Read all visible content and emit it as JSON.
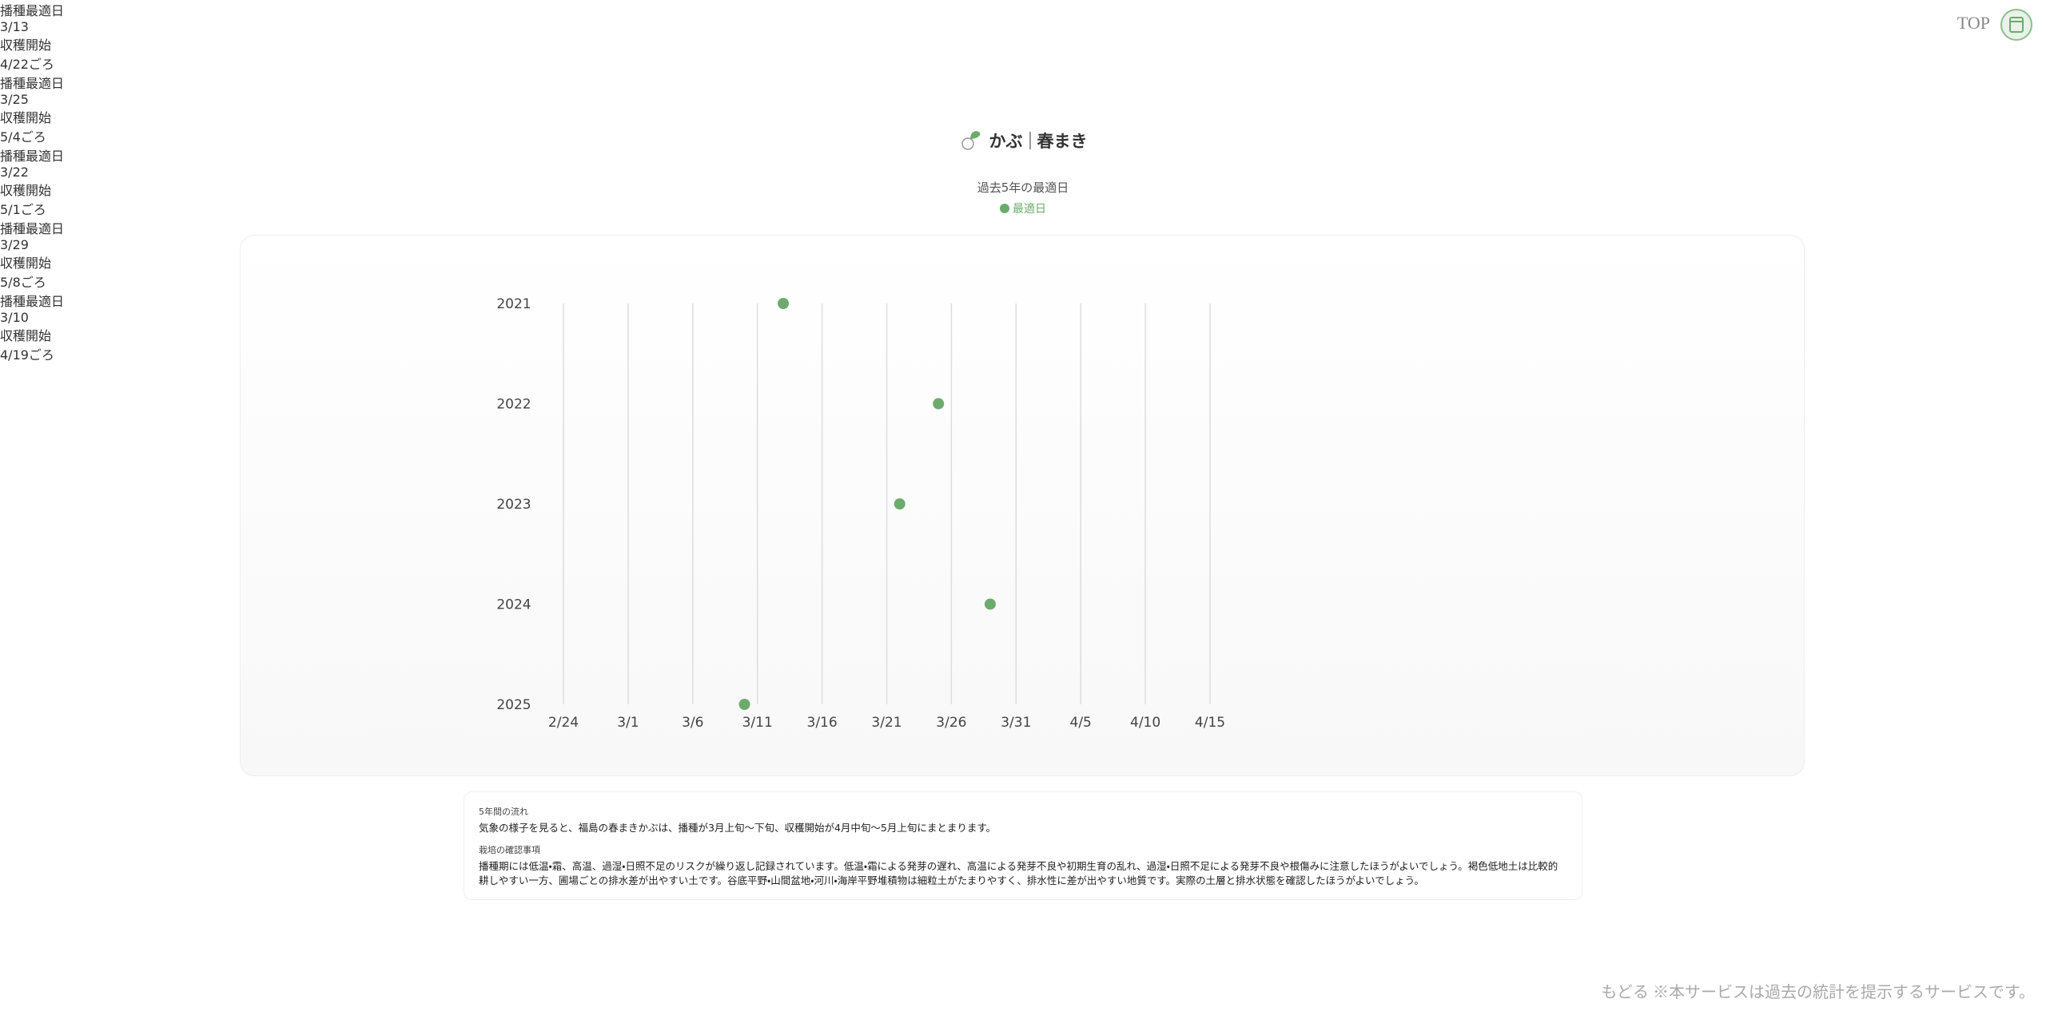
{
  "top_link": "TOP",
  "header": {
    "crop": "かぶ",
    "season": "春まき"
  },
  "chart_data": {
    "type": "dot",
    "title": "過去5年の最適日",
    "categories": [
      "2021",
      "2022",
      "2023",
      "2024",
      "2025"
    ],
    "series": [
      {
        "name": "最適日",
        "color": "#6dab6d",
        "values": [
          "3/13",
          "3/25",
          "3/22",
          "3/29",
          "3/10"
        ]
      }
    ],
    "xlim": [
      "2/24",
      "4/15"
    ],
    "xticks": [
      "2/24",
      "3/1",
      "3/6",
      "3/11",
      "3/16",
      "3/21",
      "3/26",
      "3/31",
      "4/5",
      "4/10",
      "4/15"
    ],
    "grid": true
  },
  "cards": [
    {
      "sow_label": "播種最適日",
      "harvest_label": "収穫開始",
      "harvest": "4/22ごろ"
    },
    {
      "sow_label": "播種最適日",
      "harvest_label": "収穫開始",
      "harvest": "5/4ごろ"
    },
    {
      "sow_label": "播種最適日",
      "harvest_label": "収穫開始",
      "harvest": "5/1ごろ"
    },
    {
      "sow_label": "播種最適日",
      "harvest_label": "収穫開始",
      "harvest": "5/8ごろ"
    },
    {
      "sow_label": "播種最適日",
      "harvest_label": "収穫開始",
      "harvest": "4/19ごろ"
    }
  ],
  "notes": [
    {
      "heading": "5年間の流れ",
      "body": "気象の様子を見ると、福島の春まきかぶは、播種が3月上旬〜下旬、収穫開始が4月中旬〜5月上旬にまとまります。"
    },
    {
      "heading": "栽培の確認事項",
      "body": "播種期には低温・霜、高温、過湿・日照不足のリスクが繰り返し記録されています。低温・霜による発芽の遅れ、高温による発芽不良や初期生育の乱れ、過湿・日照不足による発芽不良や根傷みに注意したほうがよいでしょう。褐色低地土は比較的耕しやすい一方、圃場ごとの排水差が出やすい土です。谷底平野・山間盆地・河川・海岸平野堆積物は細粒土がたまりやすく、排水性に差が出やすい地質です。実際の土層と排水状態を確認したほうがよいでしょう。"
    }
  ],
  "footer": {
    "back": "もどる",
    "disclaimer": "※本サービスは過去の統計を提示するサービスです。"
  }
}
